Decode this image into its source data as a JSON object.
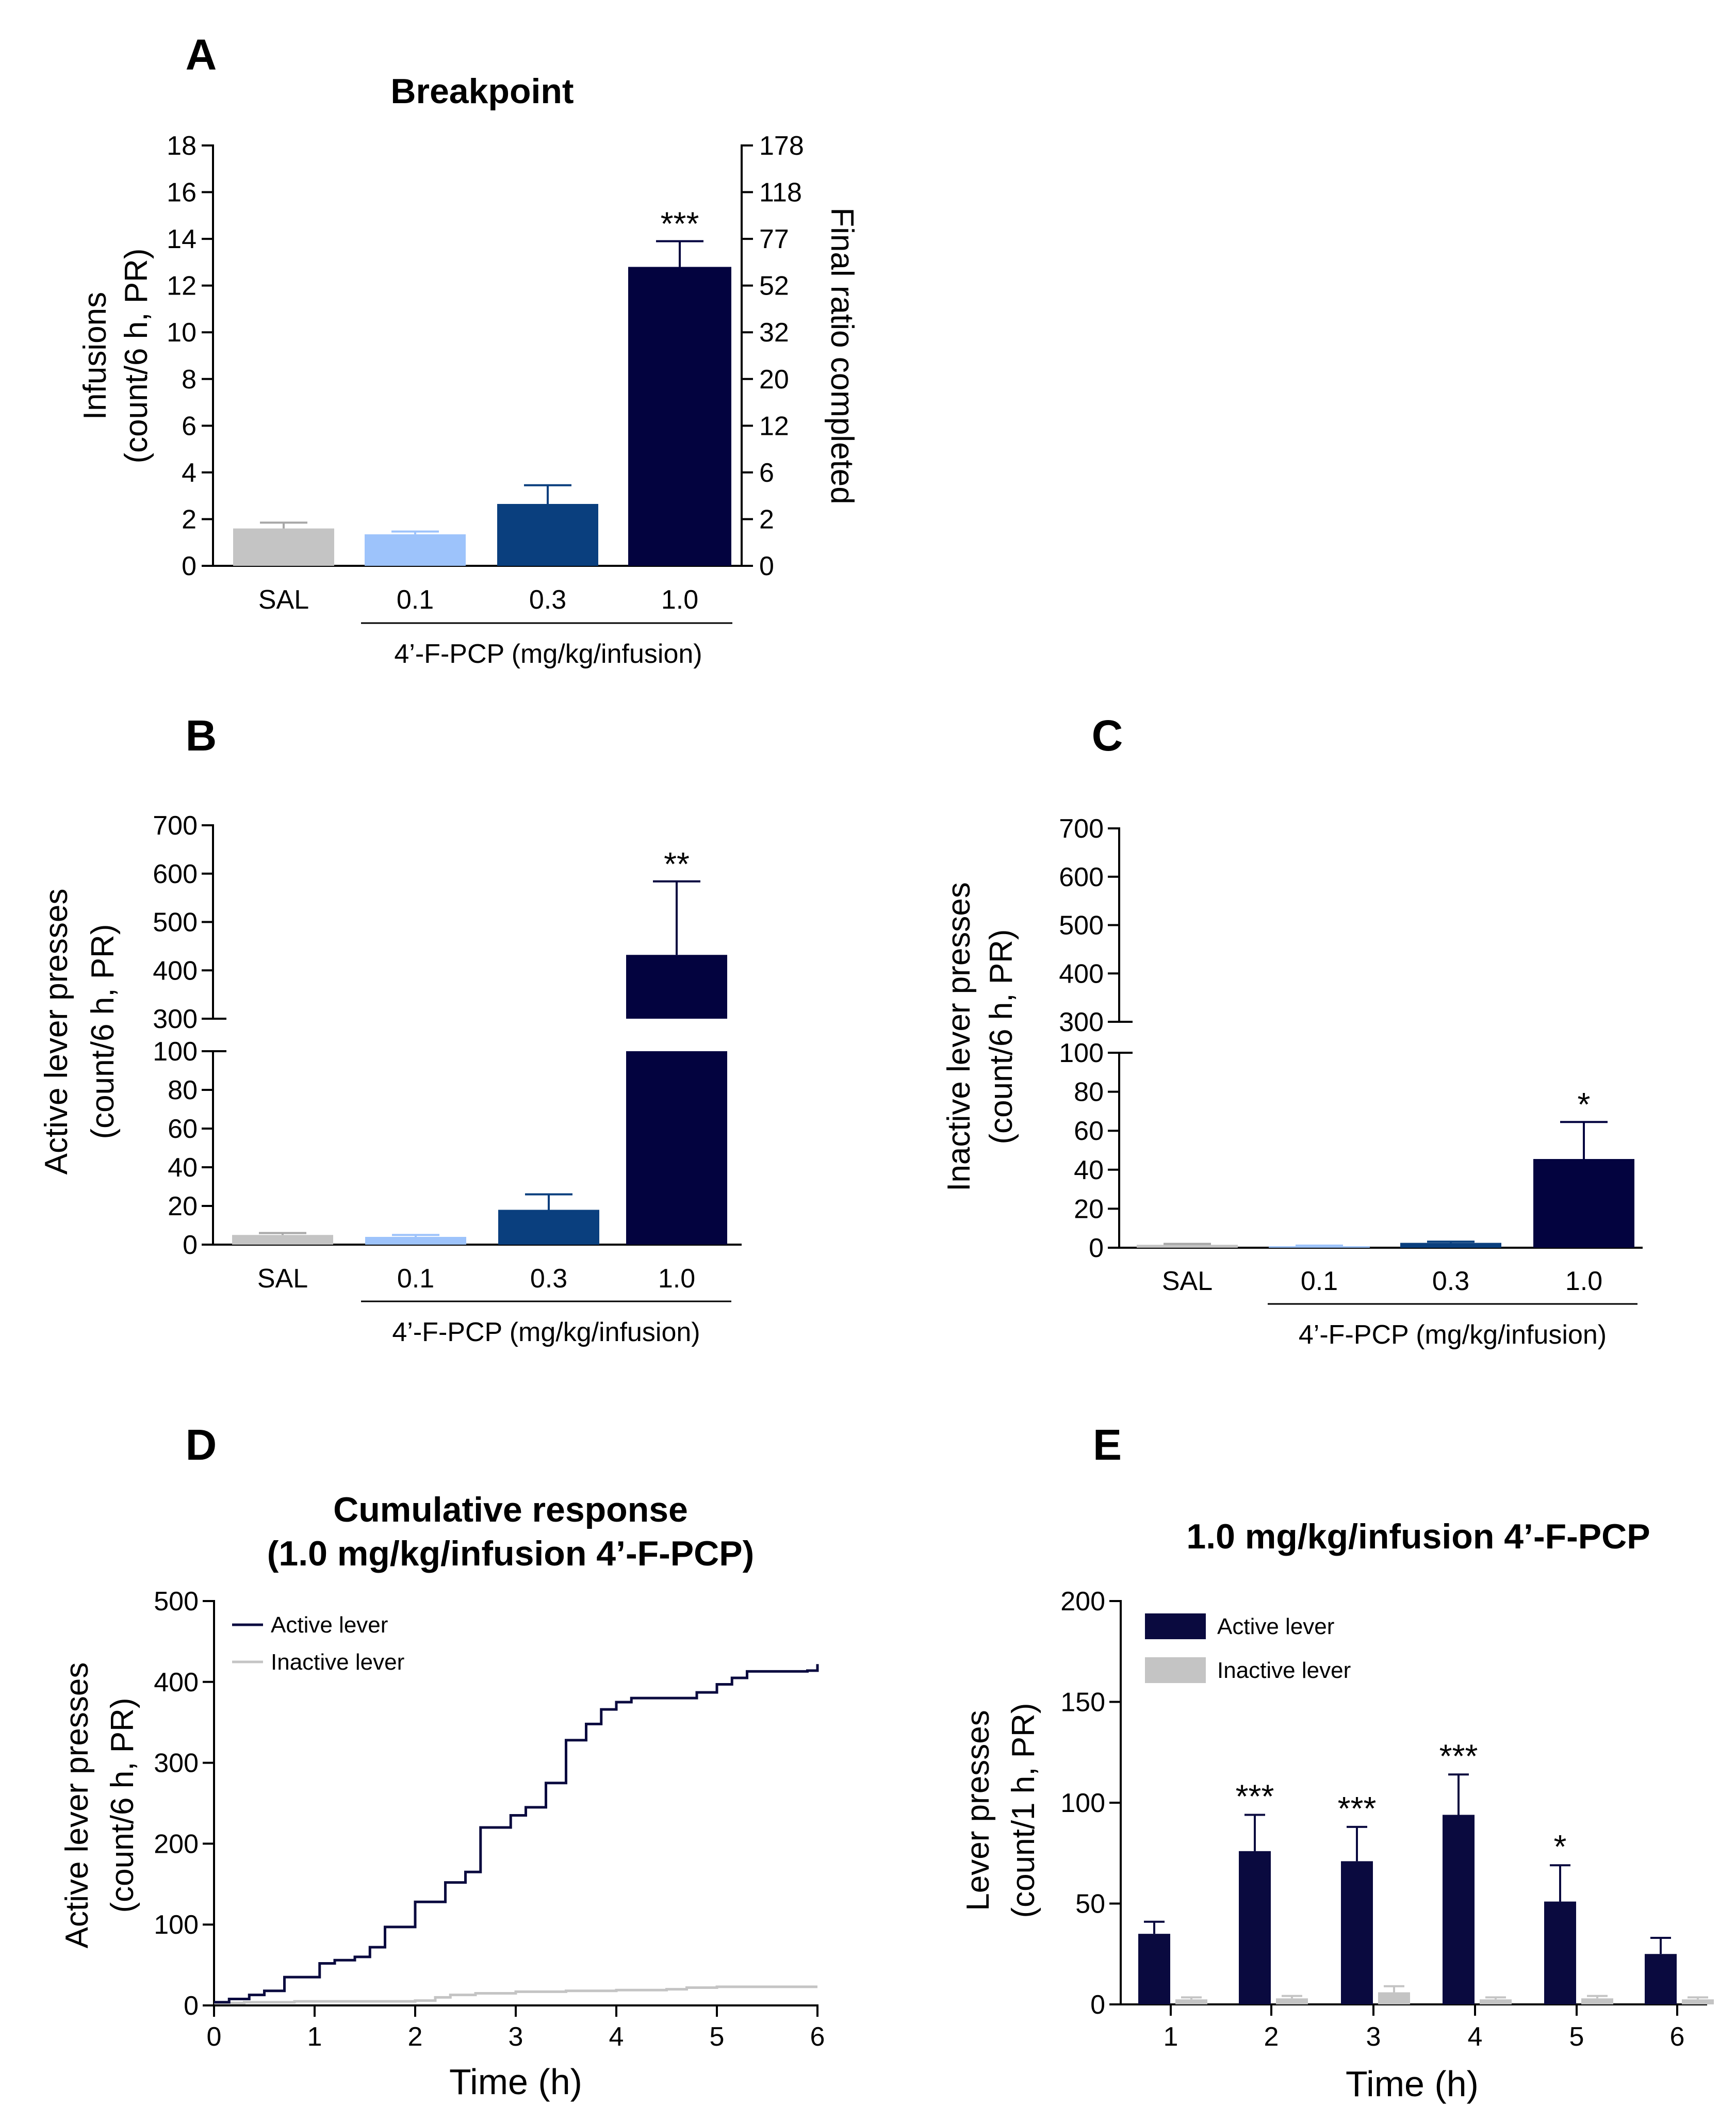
{
  "colors": {
    "SAL": "#c4c4c4",
    "0.1": "#9dc3fb",
    "0.3": "#0a3f7e",
    "1.0": "#03033f",
    "active": "#0a0a3f",
    "inactive": "#c4c4c4",
    "error_bar_sal": "#a8a8a8"
  },
  "chart_data": [
    {
      "id": "A",
      "panel_letter": "A",
      "type": "bar",
      "title": "Breakpoint",
      "categories": [
        "SAL",
        "0.1",
        "0.3",
        "1.0"
      ],
      "values": [
        1.6,
        1.35,
        2.65,
        12.8
      ],
      "errors": [
        0.25,
        0.12,
        0.8,
        1.1
      ],
      "significance": [
        "",
        "",
        "",
        "***"
      ],
      "ylabel_lines": [
        "Infusions",
        "(count/6 h, PR)"
      ],
      "ylim": [
        0,
        18
      ],
      "yticks": [
        0,
        2,
        4,
        6,
        8,
        10,
        12,
        14,
        16,
        18
      ],
      "y2label": "Final ratio completed",
      "y2ticks": [
        "0",
        "2",
        "6",
        "12",
        "20",
        "32",
        "52",
        "77",
        "118",
        "178"
      ],
      "group_label": "4’-F-PCP (mg/kg/infusion)"
    },
    {
      "id": "B",
      "panel_letter": "B",
      "type": "bar",
      "title": "",
      "categories": [
        "SAL",
        "0.1",
        "0.3",
        "1.0"
      ],
      "values": [
        5,
        4,
        18,
        432
      ],
      "errors": [
        1,
        1,
        8,
        152
      ],
      "significance": [
        "",
        "",
        "",
        "**"
      ],
      "ylabel_lines": [
        "Active lever presses",
        "(count/6 h, PR)"
      ],
      "ylim": [
        0,
        700
      ],
      "axis_break": [
        100,
        300
      ],
      "yticks_lower": [
        0,
        20,
        40,
        60,
        80,
        100
      ],
      "yticks_upper": [
        300,
        400,
        500,
        600,
        700
      ],
      "group_label": "4’-F-PCP (mg/kg/infusion)"
    },
    {
      "id": "C",
      "panel_letter": "C",
      "type": "bar",
      "title": "",
      "categories": [
        "SAL",
        "0.1",
        "0.3",
        "1.0"
      ],
      "values": [
        1.5,
        0.8,
        2.5,
        45.5
      ],
      "errors": [
        0.5,
        0.3,
        0.6,
        19
      ],
      "significance": [
        "",
        "",
        "",
        "*"
      ],
      "ylabel_lines": [
        "Inactive lever presses",
        "(count/6 h, PR)"
      ],
      "ylim": [
        0,
        700
      ],
      "axis_break": [
        100,
        300
      ],
      "yticks_lower": [
        0,
        20,
        40,
        60,
        80,
        100
      ],
      "yticks_upper": [
        300,
        400,
        500,
        600,
        700
      ],
      "group_label": "4’-F-PCP (mg/kg/infusion)"
    },
    {
      "id": "D",
      "panel_letter": "D",
      "type": "line",
      "title_lines": [
        "Cumulative response",
        "(1.0 mg/kg/infusion 4’-F-PCP)"
      ],
      "xlabel": "Time (h)",
      "ylabel_lines": [
        "Active lever presses",
        "(count/6 h, PR)"
      ],
      "xlim": [
        0,
        6
      ],
      "ylim": [
        0,
        500
      ],
      "xticks": [
        0,
        1,
        2,
        3,
        4,
        5,
        6
      ],
      "yticks": [
        0,
        100,
        200,
        300,
        400,
        500
      ],
      "series": [
        {
          "name": "Active lever",
          "points": [
            [
              0,
              4
            ],
            [
              0.15,
              8
            ],
            [
              0.35,
              13
            ],
            [
              0.5,
              18
            ],
            [
              0.7,
              35
            ],
            [
              1.05,
              52
            ],
            [
              1.2,
              56
            ],
            [
              1.4,
              60
            ],
            [
              1.55,
              72
            ],
            [
              1.7,
              97
            ],
            [
              2.0,
              128
            ],
            [
              2.3,
              152
            ],
            [
              2.5,
              165
            ],
            [
              2.65,
              220
            ],
            [
              2.95,
              235
            ],
            [
              3.1,
              245
            ],
            [
              3.3,
              275
            ],
            [
              3.5,
              328
            ],
            [
              3.7,
              348
            ],
            [
              3.85,
              366
            ],
            [
              4.0,
              375
            ],
            [
              4.15,
              380
            ],
            [
              4.8,
              387
            ],
            [
              5.0,
              397
            ],
            [
              5.15,
              405
            ],
            [
              5.3,
              413
            ],
            [
              5.9,
              414
            ],
            [
              6.0,
              422
            ]
          ]
        },
        {
          "name": "Inactive lever",
          "points": [
            [
              0,
              3
            ],
            [
              0.3,
              4
            ],
            [
              0.8,
              5
            ],
            [
              2.0,
              6
            ],
            [
              2.2,
              10
            ],
            [
              2.35,
              13
            ],
            [
              2.6,
              15
            ],
            [
              3.0,
              17
            ],
            [
              3.5,
              18
            ],
            [
              4.0,
              19
            ],
            [
              4.5,
              20
            ],
            [
              4.7,
              22
            ],
            [
              5.0,
              23
            ],
            [
              6.0,
              23
            ]
          ]
        }
      ]
    },
    {
      "id": "E",
      "panel_letter": "E",
      "type": "bar",
      "title": "1.0 mg/kg/infusion 4’-F-PCP",
      "xlabel": "Time (h)",
      "ylabel_lines": [
        "Lever presses",
        "(count/1 h, PR)"
      ],
      "categories": [
        "1",
        "2",
        "3",
        "4",
        "5",
        "6"
      ],
      "ylim": [
        0,
        200
      ],
      "yticks": [
        0,
        50,
        100,
        150,
        200
      ],
      "series": [
        {
          "name": "Active lever",
          "values": [
            35,
            76,
            71,
            94,
            51,
            25
          ],
          "errors": [
            6,
            18,
            17,
            20,
            18,
            8
          ],
          "significance": [
            "",
            "***",
            "***",
            "***",
            "*",
            ""
          ]
        },
        {
          "name": "Inactive lever",
          "values": [
            2.5,
            3,
            6,
            2.5,
            3,
            2.5
          ],
          "errors": [
            1,
            1.2,
            3,
            1,
            1.2,
            1
          ]
        }
      ]
    }
  ]
}
